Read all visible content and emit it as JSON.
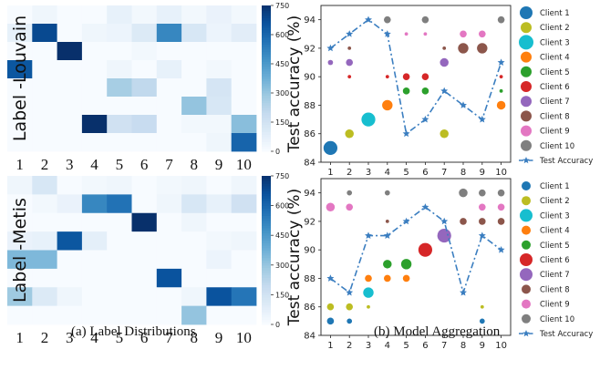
{
  "chart_data": [
    {
      "type": "heatmap",
      "ylabel": "Label -Louvain",
      "x_tick_labels": [
        "1",
        "2",
        "3",
        "4",
        "5",
        "6",
        "7",
        "8",
        "9",
        "10"
      ],
      "colorbar": {
        "min": 0,
        "max": 750,
        "ticks": [
          "0",
          "150",
          "300",
          "450",
          "600",
          "750"
        ],
        "cmap": "Blues"
      },
      "values": [
        [
          0,
          30,
          0,
          0,
          60,
          20,
          60,
          20,
          50,
          20
        ],
        [
          60,
          680,
          0,
          30,
          40,
          100,
          500,
          120,
          40,
          80
        ],
        [
          0,
          0,
          780,
          0,
          0,
          20,
          0,
          0,
          0,
          0
        ],
        [
          640,
          0,
          0,
          0,
          30,
          0,
          60,
          0,
          20,
          0
        ],
        [
          0,
          0,
          0,
          0,
          260,
          200,
          0,
          0,
          130,
          0
        ],
        [
          0,
          0,
          0,
          0,
          0,
          0,
          0,
          300,
          120,
          0
        ],
        [
          0,
          0,
          0,
          760,
          150,
          180,
          0,
          20,
          20,
          320
        ],
        [
          0,
          0,
          0,
          0,
          0,
          0,
          0,
          0,
          30,
          600
        ]
      ]
    },
    {
      "type": "heatmap",
      "ylabel": "Label -Metis",
      "x_tick_labels": [
        "1",
        "2",
        "3",
        "4",
        "5",
        "6",
        "7",
        "8",
        "9",
        "10"
      ],
      "colorbar": {
        "min": 0,
        "max": 750,
        "ticks": [
          "0",
          "150",
          "300",
          "450",
          "600",
          "750"
        ],
        "cmap": "Blues"
      },
      "values": [
        [
          30,
          120,
          0,
          20,
          30,
          0,
          20,
          30,
          0,
          30
        ],
        [
          0,
          20,
          50,
          500,
          560,
          0,
          30,
          120,
          60,
          150
        ],
        [
          0,
          0,
          0,
          0,
          0,
          800,
          0,
          30,
          0,
          0
        ],
        [
          50,
          60,
          640,
          70,
          0,
          0,
          0,
          0,
          20,
          30
        ],
        [
          340,
          340,
          0,
          0,
          0,
          0,
          0,
          0,
          40,
          0
        ],
        [
          0,
          0,
          0,
          0,
          0,
          0,
          650,
          0,
          0,
          0
        ],
        [
          280,
          100,
          30,
          0,
          0,
          0,
          0,
          30,
          650,
          550
        ],
        [
          0,
          0,
          0,
          0,
          0,
          0,
          0,
          300,
          0,
          0
        ]
      ]
    },
    {
      "type": "scatter",
      "title": "",
      "xlabel": "",
      "ylabel": "Test accuracy (%)",
      "x": [
        1,
        2,
        3,
        4,
        5,
        6,
        7,
        8,
        9,
        10
      ],
      "ylim": [
        84,
        95
      ],
      "yticks": [
        84,
        86,
        88,
        90,
        92,
        94
      ],
      "legend_position": "right",
      "series": [
        {
          "name": "Client 1",
          "color": "#1f77b4",
          "points": [
            {
              "x": 1,
              "y": 85,
              "size": 8
            }
          ]
        },
        {
          "name": "Client 2",
          "color": "#bcbd22",
          "points": [
            {
              "x": 2,
              "y": 86,
              "size": 5
            },
            {
              "x": 7,
              "y": 86,
              "size": 5
            }
          ]
        },
        {
          "name": "Client 3",
          "color": "#17becf",
          "points": [
            {
              "x": 3,
              "y": 87,
              "size": 8
            }
          ]
        },
        {
          "name": "Client 4",
          "color": "#ff7f0e",
          "points": [
            {
              "x": 4,
              "y": 88,
              "size": 6
            },
            {
              "x": 10,
              "y": 88,
              "size": 5
            }
          ]
        },
        {
          "name": "Client 5",
          "color": "#2ca02c",
          "points": [
            {
              "x": 5,
              "y": 89,
              "size": 4
            },
            {
              "x": 6,
              "y": 89,
              "size": 4
            },
            {
              "x": 10,
              "y": 89,
              "size": 2
            }
          ]
        },
        {
          "name": "Client 6",
          "color": "#d62728",
          "points": [
            {
              "x": 2,
              "y": 90,
              "size": 2
            },
            {
              "x": 4,
              "y": 90,
              "size": 2
            },
            {
              "x": 5,
              "y": 90,
              "size": 4
            },
            {
              "x": 6,
              "y": 90,
              "size": 4
            },
            {
              "x": 10,
              "y": 90,
              "size": 2
            }
          ]
        },
        {
          "name": "Client 7",
          "color": "#9467bd",
          "points": [
            {
              "x": 1,
              "y": 91,
              "size": 3
            },
            {
              "x": 2,
              "y": 91,
              "size": 4
            },
            {
              "x": 7,
              "y": 91,
              "size": 5
            }
          ]
        },
        {
          "name": "Client 8",
          "color": "#8c564b",
          "points": [
            {
              "x": 2,
              "y": 92,
              "size": 2
            },
            {
              "x": 7,
              "y": 92,
              "size": 2
            },
            {
              "x": 8,
              "y": 92,
              "size": 6
            },
            {
              "x": 9,
              "y": 92,
              "size": 6
            }
          ]
        },
        {
          "name": "Client 9",
          "color": "#e377c2",
          "points": [
            {
              "x": 5,
              "y": 93,
              "size": 2
            },
            {
              "x": 6,
              "y": 93,
              "size": 2
            },
            {
              "x": 8,
              "y": 93,
              "size": 4
            },
            {
              "x": 9,
              "y": 93,
              "size": 4
            }
          ]
        },
        {
          "name": "Client 10",
          "color": "#7f7f7f",
          "points": [
            {
              "x": 4,
              "y": 94,
              "size": 4
            },
            {
              "x": 6,
              "y": 94,
              "size": 4
            },
            {
              "x": 10,
              "y": 94,
              "size": 4
            }
          ]
        }
      ],
      "line": {
        "name": "Test Accuracy",
        "color": "#3b7ec0",
        "y": [
          92,
          93,
          94,
          93,
          86,
          87,
          89,
          88,
          87,
          91
        ]
      }
    },
    {
      "type": "scatter",
      "title": "",
      "xlabel": "",
      "ylabel": "Test accuracy (%)",
      "x": [
        1,
        2,
        3,
        4,
        5,
        6,
        7,
        8,
        9,
        10
      ],
      "ylim": [
        84,
        95
      ],
      "yticks": [
        84,
        86,
        88,
        90,
        92,
        94
      ],
      "legend_position": "right",
      "series": [
        {
          "name": "Client 1",
          "color": "#1f77b4",
          "points": [
            {
              "x": 1,
              "y": 85,
              "size": 4
            },
            {
              "x": 2,
              "y": 85,
              "size": 3
            },
            {
              "x": 9,
              "y": 85,
              "size": 3
            }
          ]
        },
        {
          "name": "Client 2",
          "color": "#bcbd22",
          "points": [
            {
              "x": 1,
              "y": 86,
              "size": 4
            },
            {
              "x": 2,
              "y": 86,
              "size": 4
            },
            {
              "x": 3,
              "y": 86,
              "size": 2
            },
            {
              "x": 9,
              "y": 86,
              "size": 2
            }
          ]
        },
        {
          "name": "Client 3",
          "color": "#17becf",
          "points": [
            {
              "x": 3,
              "y": 87,
              "size": 6
            }
          ]
        },
        {
          "name": "Client 4",
          "color": "#ff7f0e",
          "points": [
            {
              "x": 3,
              "y": 88,
              "size": 4
            },
            {
              "x": 4,
              "y": 88,
              "size": 4
            },
            {
              "x": 5,
              "y": 88,
              "size": 4
            }
          ]
        },
        {
          "name": "Client 5",
          "color": "#2ca02c",
          "points": [
            {
              "x": 4,
              "y": 89,
              "size": 5
            },
            {
              "x": 5,
              "y": 89,
              "size": 6
            }
          ]
        },
        {
          "name": "Client 6",
          "color": "#d62728",
          "points": [
            {
              "x": 6,
              "y": 90,
              "size": 8
            }
          ]
        },
        {
          "name": "Client 7",
          "color": "#9467bd",
          "points": [
            {
              "x": 7,
              "y": 91,
              "size": 8
            }
          ]
        },
        {
          "name": "Client 8",
          "color": "#8c564b",
          "points": [
            {
              "x": 4,
              "y": 92,
              "size": 2
            },
            {
              "x": 8,
              "y": 92,
              "size": 4
            },
            {
              "x": 9,
              "y": 92,
              "size": 4
            },
            {
              "x": 10,
              "y": 92,
              "size": 4
            }
          ]
        },
        {
          "name": "Client 9",
          "color": "#e377c2",
          "points": [
            {
              "x": 1,
              "y": 93,
              "size": 5
            },
            {
              "x": 2,
              "y": 93,
              "size": 4
            },
            {
              "x": 9,
              "y": 93,
              "size": 4
            },
            {
              "x": 10,
              "y": 93,
              "size": 4
            }
          ]
        },
        {
          "name": "Client 10",
          "color": "#7f7f7f",
          "points": [
            {
              "x": 2,
              "y": 94,
              "size": 3
            },
            {
              "x": 4,
              "y": 94,
              "size": 3
            },
            {
              "x": 8,
              "y": 94,
              "size": 5
            },
            {
              "x": 9,
              "y": 94,
              "size": 4
            },
            {
              "x": 10,
              "y": 94,
              "size": 4
            }
          ]
        }
      ],
      "line": {
        "name": "Test Accuracy",
        "color": "#3b7ec0",
        "y": [
          88,
          87,
          91,
          91,
          92,
          93,
          92,
          87,
          91,
          90
        ]
      }
    }
  ],
  "captions": {
    "left": "(a) Label Distributions",
    "right": "(b) Model Aggregation"
  }
}
